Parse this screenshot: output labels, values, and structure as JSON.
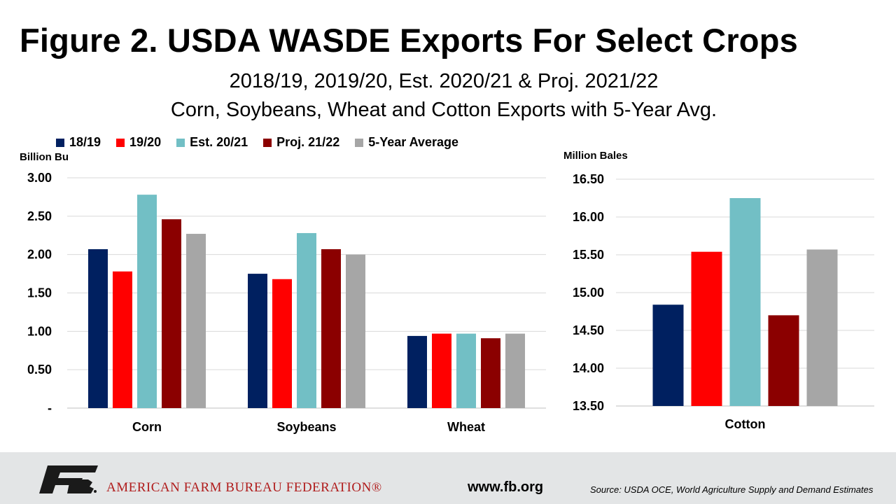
{
  "title": "Figure 2. USDA WASDE Exports For Select Crops",
  "subtitle_line1": "2018/19, 2019/20, Est. 2020/21 & Proj. 2021/22",
  "subtitle_line2": "Corn, Soybeans, Wheat and Cotton Exports with 5-Year Avg.",
  "colors": {
    "s1819": "#002060",
    "s1920": "#ff0000",
    "s2021": "#72bfc5",
    "s2122": "#8b0000",
    "avg": "#a6a6a6",
    "grid": "#d9d9d9",
    "footer": "#e3e5e6",
    "brand_red": "#b01c1c"
  },
  "legend": [
    {
      "label": "18/19",
      "color": "#002060"
    },
    {
      "label": "19/20",
      "color": "#ff0000"
    },
    {
      "label": "Est. 20/21",
      "color": "#72bfc5"
    },
    {
      "label": "Proj. 21/22",
      "color": "#8b0000"
    },
    {
      "label": "5-Year Average",
      "color": "#a6a6a6"
    }
  ],
  "chart_data": [
    {
      "type": "bar",
      "ylabel": "Billion Bu",
      "categories": [
        "Corn",
        "Soybeans",
        "Wheat"
      ],
      "ylim": [
        0,
        3.0
      ],
      "yticks": [
        "-",
        "0.50",
        "1.00",
        "1.50",
        "2.00",
        "2.50",
        "3.00"
      ],
      "grid": true,
      "legend_position": "top",
      "series": [
        {
          "name": "18/19",
          "values": [
            2.07,
            1.75,
            0.94
          ]
        },
        {
          "name": "19/20",
          "values": [
            1.78,
            1.68,
            0.97
          ]
        },
        {
          "name": "Est. 20/21",
          "values": [
            2.78,
            2.28,
            0.97
          ]
        },
        {
          "name": "Proj. 21/22",
          "values": [
            2.46,
            2.07,
            0.91
          ]
        },
        {
          "name": "5-Year Average",
          "values": [
            2.27,
            2.0,
            0.97
          ]
        }
      ]
    },
    {
      "type": "bar",
      "ylabel": "Million Bales",
      "categories": [
        "Cotton"
      ],
      "ylim": [
        13.5,
        16.5
      ],
      "yticks": [
        "13.50",
        "14.00",
        "14.50",
        "15.00",
        "15.50",
        "16.00",
        "16.50"
      ],
      "grid": true,
      "series": [
        {
          "name": "18/19",
          "values": [
            14.84
          ]
        },
        {
          "name": "19/20",
          "values": [
            15.54
          ]
        },
        {
          "name": "Est. 20/21",
          "values": [
            16.25
          ]
        },
        {
          "name": "Proj. 21/22",
          "values": [
            14.7
          ]
        },
        {
          "name": "5-Year Average",
          "values": [
            15.57
          ]
        }
      ]
    }
  ],
  "footer": {
    "org_name": "AMERICAN FARM BUREAU FEDERATION®",
    "website": "www.fb.org",
    "source": "Source: USDA OCE, World Agriculture Supply and Demand Estimates"
  }
}
